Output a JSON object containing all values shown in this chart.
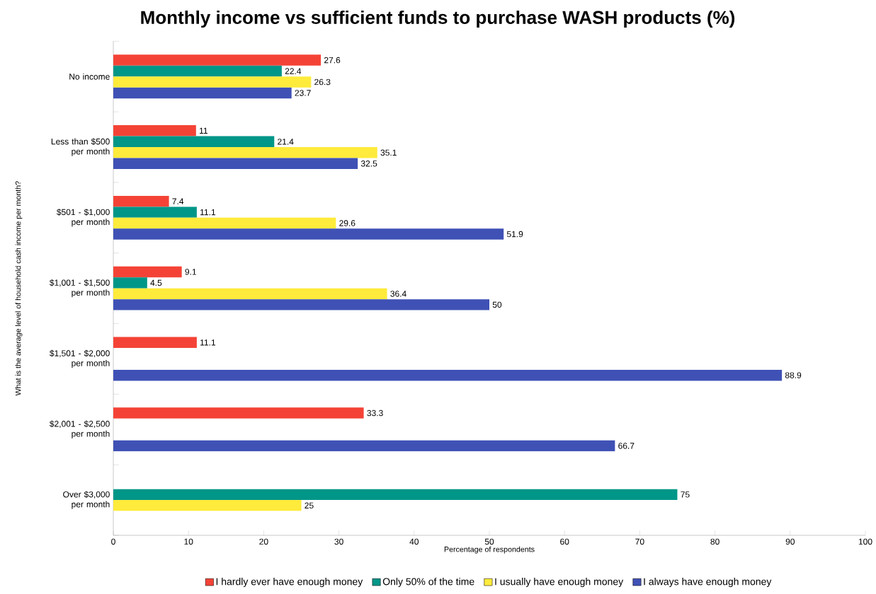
{
  "chart_data": {
    "type": "bar",
    "orientation": "horizontal",
    "title": "Monthly income vs sufficient funds to purchase WASH products (%)",
    "xlabel": "Percentage of respondents",
    "ylabel": "What is the average level of household cash income per month?",
    "categories": [
      "No income",
      "Less than $500 per month",
      "$501 - $1,000 per month",
      "$1,001 - $1,500 per month",
      "$1,501 - $2,000 per month",
      "$2,001 - $2,500 per month",
      "Over $3,000 per month"
    ],
    "series": [
      {
        "name": "I hardly ever have enough money",
        "color": "#f44336",
        "values": [
          27.6,
          11,
          7.4,
          9.1,
          11.1,
          33.3,
          null
        ]
      },
      {
        "name": "Only 50% of the time",
        "color": "#009688",
        "values": [
          22.4,
          21.4,
          11.1,
          4.5,
          null,
          null,
          75
        ]
      },
      {
        "name": "I usually have enough money",
        "color": "#ffeb3b",
        "values": [
          26.3,
          35.1,
          29.6,
          36.4,
          null,
          null,
          25
        ]
      },
      {
        "name": "I always have enough money",
        "color": "#3f51b5",
        "values": [
          23.7,
          32.5,
          51.9,
          50,
          88.9,
          66.7,
          null
        ]
      }
    ],
    "xlim": [
      0,
      100
    ],
    "xticks": [
      0,
      10,
      20,
      30,
      40,
      50,
      60,
      70,
      80,
      90,
      100
    ],
    "data_labels": true,
    "legend": "bottom",
    "grid": false
  }
}
